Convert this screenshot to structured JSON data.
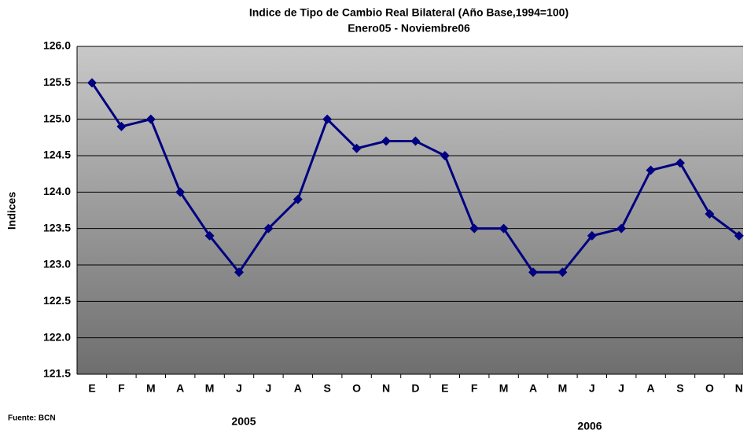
{
  "chart_data": {
    "type": "line",
    "title": "Indice de Tipo de Cambio Real Bilateral (Año Base,1994=100)",
    "subtitle": "Enero05 - Noviembre06",
    "y_label": "Indices",
    "categories": [
      "E",
      "F",
      "M",
      "A",
      "M",
      "J",
      "J",
      "A",
      "S",
      "O",
      "N",
      "D",
      "E",
      "F",
      "M",
      "A",
      "M",
      "J",
      "J",
      "A",
      "S",
      "O",
      "N"
    ],
    "series": [
      {
        "name": "Indice",
        "color": "#000080",
        "values": [
          125.5,
          124.9,
          125.0,
          124.0,
          123.4,
          122.9,
          123.5,
          123.9,
          125.0,
          124.6,
          124.7,
          124.7,
          124.5,
          123.5,
          123.5,
          122.9,
          122.9,
          123.4,
          123.5,
          124.3,
          124.4,
          123.7,
          123.4
        ]
      }
    ],
    "ylim": [
      121.5,
      126.0
    ],
    "yticks": [
      {
        "value": 121.5,
        "label": "121.5"
      },
      {
        "value": 122,
        "label": "122.0"
      },
      {
        "value": 122.5,
        "label": "122.5"
      },
      {
        "value": 123,
        "label": "123.0"
      },
      {
        "value": 123.5,
        "label": "123.5"
      },
      {
        "value": 124,
        "label": "124.0"
      },
      {
        "value": 124.5,
        "label": "124.5"
      },
      {
        "value": 125,
        "label": "125.0"
      },
      {
        "value": 125.5,
        "label": "125.5"
      },
      {
        "value": 126,
        "label": "126.0"
      }
    ],
    "grid": true,
    "annotations": [
      "2005",
      "2006",
      "Fuente: BCN"
    ]
  }
}
